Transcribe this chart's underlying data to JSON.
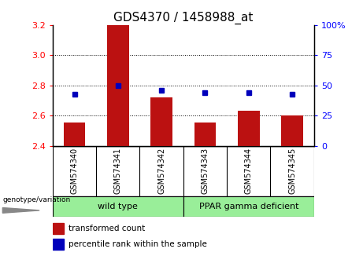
{
  "title": "GDS4370 / 1458988_at",
  "samples": [
    "GSM574340",
    "GSM574341",
    "GSM574342",
    "GSM574343",
    "GSM574344",
    "GSM574345"
  ],
  "red_values": [
    2.555,
    3.2,
    2.72,
    2.555,
    2.635,
    2.6
  ],
  "blue_values": [
    43,
    50,
    46,
    44,
    44,
    43
  ],
  "ylim_left": [
    2.4,
    3.2
  ],
  "ylim_right": [
    0,
    100
  ],
  "yticks_left": [
    2.4,
    2.6,
    2.8,
    3.0,
    3.2
  ],
  "yticks_right": [
    0,
    25,
    50,
    75,
    100
  ],
  "ytick_labels_right": [
    "0",
    "25",
    "50",
    "75",
    "100%"
  ],
  "baseline": 2.4,
  "bar_color": "#BB1111",
  "point_color": "#0000BB",
  "bar_width": 0.5,
  "bg_color": "#CCCCCC",
  "green_color": "#99EE99",
  "legend_red_label": "transformed count",
  "legend_blue_label": "percentile rank within the sample",
  "title_fontsize": 11,
  "tick_fontsize": 8,
  "sample_fontsize": 7,
  "legend_fontsize": 7.5,
  "group_fontsize": 8
}
